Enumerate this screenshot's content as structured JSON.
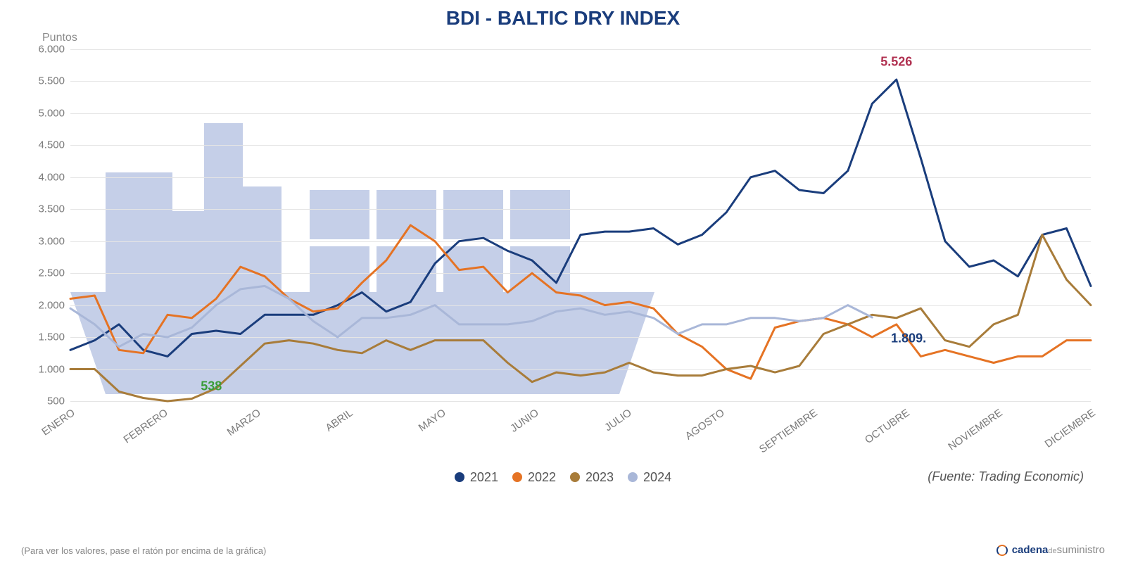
{
  "chart": {
    "type": "line",
    "title": "BDI - BALTIC DRY INDEX",
    "title_color": "#1a3d7c",
    "title_fontsize": 28,
    "ylabel": "Puntos",
    "ylabel_fontsize": 16,
    "background_color": "#ffffff",
    "grid_color": "#e5e5e5",
    "ylim": [
      500,
      6000
    ],
    "ytick_step": 500,
    "yticks": [
      "500",
      "1.000",
      "1.500",
      "2.000",
      "2.500",
      "3.000",
      "3.500",
      "4.000",
      "4.500",
      "5.000",
      "5.500",
      "6.000"
    ],
    "xticks": [
      "ENERO",
      "FEBRERO",
      "MARZO",
      "ABRIL",
      "MAYO",
      "JUNIO",
      "JULIO",
      "AGOSTO",
      "SEPTIEMBRE",
      "OCTUBRE",
      "NOVIEMBRE",
      "DICIEMBRE"
    ],
    "line_width": 3,
    "series": {
      "2021": {
        "label": "2021",
        "color": "#1a3d7c",
        "values": [
          1300,
          1450,
          1700,
          1300,
          1200,
          1550,
          1600,
          1550,
          1850,
          1850,
          1850,
          2000,
          2200,
          1900,
          2050,
          2650,
          3000,
          3050,
          2850,
          2700,
          2350,
          3100,
          3150,
          3150,
          3200,
          2950,
          3100,
          3450,
          4000,
          4100,
          3800,
          3750,
          4100,
          5150,
          5526,
          4300,
          3000,
          2600,
          2700,
          2450,
          3100,
          3200,
          2300
        ]
      },
      "2022": {
        "label": "2022",
        "color": "#e57324",
        "values": [
          2100,
          2150,
          1300,
          1250,
          1850,
          1800,
          2100,
          2600,
          2450,
          2100,
          1900,
          1950,
          2350,
          2700,
          3250,
          3000,
          2550,
          2600,
          2200,
          2500,
          2200,
          2150,
          2000,
          2050,
          1950,
          1550,
          1350,
          1000,
          850,
          1650,
          1750,
          1800,
          1700,
          1500,
          1700,
          1200,
          1300,
          1200,
          1100,
          1200,
          1200,
          1450,
          1450
        ]
      },
      "2023": {
        "label": "2023",
        "color": "#a87c3a",
        "values": [
          1000,
          1000,
          650,
          550,
          500,
          538,
          700,
          1050,
          1400,
          1450,
          1400,
          1300,
          1250,
          1450,
          1300,
          1450,
          1450,
          1450,
          1100,
          800,
          950,
          900,
          950,
          1100,
          950,
          900,
          900,
          1000,
          1050,
          950,
          1050,
          1550,
          1700,
          1850,
          1800,
          1950,
          1450,
          1350,
          1700,
          1850,
          3100,
          2400,
          2000
        ]
      },
      "2024": {
        "label": "2024",
        "color": "#a9b7d8",
        "values": [
          1950,
          1700,
          1350,
          1550,
          1500,
          1650,
          2000,
          2250,
          2300,
          2100,
          1750,
          1500,
          1800,
          1800,
          1850,
          2000,
          1700,
          1700,
          1700,
          1750,
          1900,
          1950,
          1850,
          1900,
          1800,
          1550,
          1700,
          1700,
          1800,
          1800,
          1750,
          1800,
          2000,
          1809
        ]
      }
    },
    "annotations": [
      {
        "text": "5.526",
        "x_idx": 34,
        "y": 5526,
        "dy": -25,
        "color": "#b03050"
      },
      {
        "text": "1.809.",
        "x_idx": 34.5,
        "y": 1809,
        "dy": 30,
        "color": "#1a3d7c"
      },
      {
        "text": "538",
        "x_idx": 5.8,
        "y": 538,
        "dy": -18,
        "color": "#3a9d3a"
      }
    ],
    "legend_labels": [
      "2021",
      "2022",
      "2023",
      "2024"
    ],
    "source": "(Fuente: Trading Economic)",
    "hint": "(Para ver los valores, pase el ratón por encima de la gráfica)",
    "brand_prefix": "cadena",
    "brand_mid": "de",
    "brand_suffix": "suministro"
  }
}
